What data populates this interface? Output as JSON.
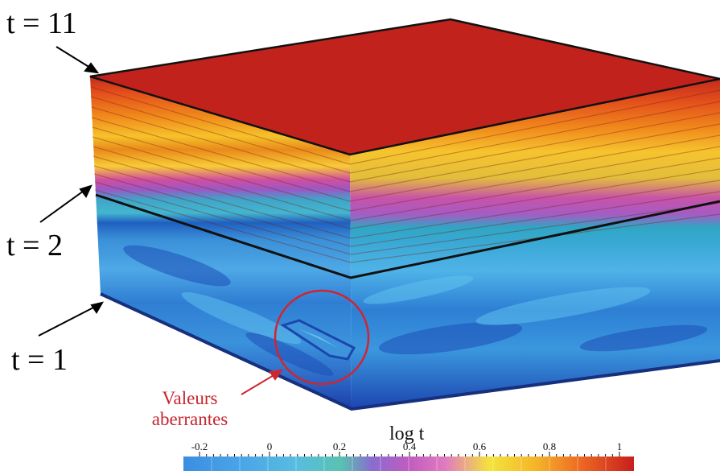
{
  "labels": {
    "t11": "t = 11",
    "t2": "t = 2",
    "t1": "t = 1",
    "outlier_line1": "Valeurs",
    "outlier_line2": "aberrantes"
  },
  "colorbar": {
    "title": "log t",
    "ticks": [
      "-0.2",
      "0",
      "0.2",
      "0.4",
      "0.6",
      "0.8",
      "1"
    ],
    "range": [
      -0.2,
      1
    ]
  },
  "colors": {
    "top_face": "#c1221c",
    "deep_blue": "#1f46b6",
    "mid_blue": "#3a90d8",
    "light_blue": "#5cb6ea",
    "annotation": "#c4262e"
  }
}
